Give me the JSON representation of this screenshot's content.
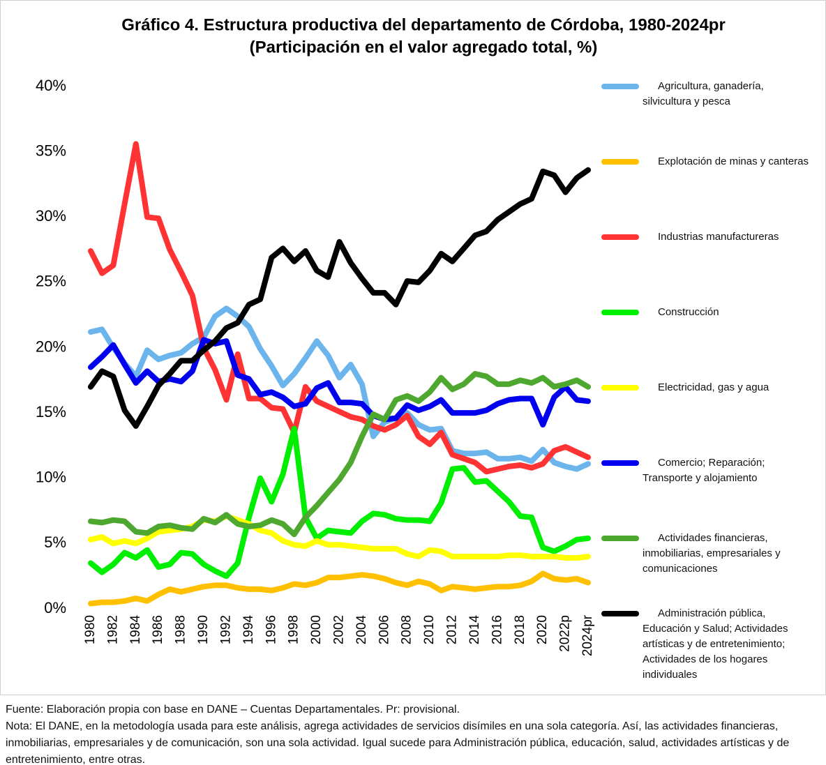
{
  "chart_data": {
    "type": "line",
    "title": "Gráfico 4. Estructura productiva del departamento de Córdoba, 1980-2024pr",
    "subtitle": "(Participación en el valor agregado total, %)",
    "categories": [
      "1980",
      null,
      "1982",
      null,
      "1984",
      null,
      "1986",
      null,
      "1988",
      null,
      "1990",
      null,
      "1992",
      null,
      "1994",
      null,
      "1996",
      null,
      "1998",
      null,
      "2000",
      null,
      "2002",
      null,
      "2004",
      null,
      "2006",
      null,
      "2008",
      null,
      "2010",
      null,
      "2012",
      null,
      "2014",
      null,
      "2016",
      null,
      "2018",
      null,
      "2020",
      null,
      "2022p",
      null,
      "2024pr"
    ],
    "ylim": [
      0,
      40
    ],
    "yticks": [
      {
        "value": 0,
        "label": "0%"
      },
      {
        "value": 5,
        "label": "5%"
      },
      {
        "value": 10,
        "label": "10%"
      },
      {
        "value": 15,
        "label": "15%"
      },
      {
        "value": 20,
        "label": "20%"
      },
      {
        "value": 25,
        "label": "25%"
      },
      {
        "value": 30,
        "label": "30%"
      },
      {
        "value": 35,
        "label": "35%"
      },
      {
        "value": 40,
        "label": "40%"
      }
    ],
    "grid": false,
    "legend": "right",
    "series": [
      {
        "name": "Agricultura, ganadería, silvicultura y pesca",
        "color": "#6cb4ec",
        "values": [
          21.2,
          21.4,
          20.0,
          18.8,
          17.8,
          19.8,
          19.1,
          19.4,
          19.6,
          20.3,
          20.8,
          22.4,
          23.0,
          22.4,
          21.6,
          19.9,
          18.6,
          17.1,
          18.0,
          19.2,
          20.5,
          19.4,
          17.7,
          18.7,
          17.2,
          13.2,
          14.3,
          14.6,
          15.0,
          14.1,
          13.7,
          13.8,
          12.1,
          11.9,
          11.9,
          12.0,
          11.5,
          11.5,
          11.6,
          11.3,
          12.2,
          11.2,
          10.9,
          10.7,
          11.1
        ]
      },
      {
        "name": "Explotación de minas y canteras",
        "color": "#ffc000",
        "values": [
          0.4,
          0.5,
          0.5,
          0.6,
          0.8,
          0.6,
          1.1,
          1.5,
          1.3,
          1.5,
          1.7,
          1.8,
          1.8,
          1.6,
          1.5,
          1.5,
          1.4,
          1.6,
          1.9,
          1.8,
          2.0,
          2.4,
          2.4,
          2.5,
          2.6,
          2.5,
          2.3,
          2.0,
          1.8,
          2.1,
          1.9,
          1.4,
          1.7,
          1.6,
          1.5,
          1.6,
          1.7,
          1.7,
          1.8,
          2.1,
          2.7,
          2.3,
          2.2,
          2.3,
          2.0
        ]
      },
      {
        "name": "Industrias manufactureras",
        "color": "#ff3333",
        "values": [
          27.4,
          25.7,
          26.3,
          31.0,
          35.6,
          30.0,
          29.9,
          27.5,
          25.8,
          24.0,
          20.0,
          18.3,
          16.0,
          19.5,
          16.1,
          16.1,
          15.4,
          15.3,
          13.5,
          17.0,
          15.9,
          15.5,
          15.1,
          14.7,
          14.5,
          14.0,
          13.7,
          14.1,
          14.8,
          13.2,
          12.6,
          13.5,
          11.8,
          11.5,
          11.2,
          10.5,
          10.7,
          10.9,
          11.0,
          10.8,
          11.1,
          12.1,
          12.4,
          12.0,
          11.6
        ]
      },
      {
        "name": "Construcción",
        "color": "#00ee00",
        "values": [
          3.5,
          2.8,
          3.4,
          4.3,
          3.9,
          4.5,
          3.2,
          3.4,
          4.3,
          4.2,
          3.4,
          2.9,
          2.5,
          3.5,
          7.0,
          10.0,
          8.2,
          10.3,
          13.8,
          7.0,
          5.4,
          6.0,
          5.9,
          5.8,
          6.7,
          7.3,
          7.2,
          6.9,
          6.8,
          6.8,
          6.7,
          8.1,
          10.7,
          10.8,
          9.7,
          9.8,
          9.0,
          8.2,
          7.1,
          7.0,
          4.7,
          4.4,
          4.8,
          5.3,
          5.4
        ]
      },
      {
        "name": "Electricidad, gas y agua",
        "color": "#ffff00",
        "values": [
          5.3,
          5.5,
          5.0,
          5.2,
          5.0,
          5.4,
          5.9,
          6.0,
          6.1,
          6.3,
          6.8,
          6.7,
          7.1,
          6.8,
          6.5,
          6.0,
          5.8,
          5.2,
          4.9,
          4.8,
          5.2,
          4.9,
          4.9,
          4.8,
          4.7,
          4.6,
          4.6,
          4.6,
          4.2,
          4.0,
          4.5,
          4.4,
          4.0,
          4.0,
          4.0,
          4.0,
          4.0,
          4.1,
          4.1,
          4.0,
          4.0,
          4.0,
          3.9,
          3.9,
          4.0
        ]
      },
      {
        "name": "Comercio; Reparación; Transporte y alojamiento",
        "color": "#0000ee",
        "values": [
          18.5,
          19.3,
          20.2,
          18.7,
          17.3,
          18.2,
          17.4,
          17.6,
          17.4,
          18.2,
          20.6,
          20.3,
          20.5,
          17.9,
          17.6,
          16.4,
          16.6,
          16.2,
          15.5,
          15.7,
          16.9,
          17.3,
          15.8,
          15.8,
          15.7,
          14.8,
          14.5,
          14.6,
          15.6,
          15.2,
          15.5,
          16.0,
          15.0,
          15.0,
          15.0,
          15.2,
          15.7,
          16.0,
          16.1,
          16.1,
          14.1,
          16.2,
          17.0,
          16.0,
          15.9
        ]
      },
      {
        "name": "Actividades financieras, inmobiliarias, empresariales y comunicaciones",
        "color": "#4ea72e",
        "values": [
          6.7,
          6.6,
          6.8,
          6.7,
          5.9,
          5.8,
          6.3,
          6.4,
          6.2,
          6.1,
          6.9,
          6.6,
          7.2,
          6.5,
          6.3,
          6.4,
          6.8,
          6.5,
          5.7,
          7.0,
          7.9,
          8.9,
          9.9,
          11.2,
          13.2,
          14.9,
          14.5,
          16.0,
          16.3,
          15.9,
          16.6,
          17.7,
          16.8,
          17.2,
          18.0,
          17.8,
          17.2,
          17.2,
          17.5,
          17.3,
          17.7,
          17.0,
          17.2,
          17.5,
          17.0
        ]
      },
      {
        "name": "Administración pública, Educación y Salud; Actividades artísticas y de entretenimiento; Actividades de los hogares individuales",
        "color": "#000000",
        "values": [
          17.0,
          18.2,
          17.8,
          15.2,
          14.0,
          15.5,
          17.1,
          18.0,
          19.0,
          19.0,
          19.8,
          20.5,
          21.5,
          21.9,
          23.3,
          23.7,
          26.9,
          27.6,
          26.6,
          27.4,
          25.9,
          25.4,
          28.1,
          26.5,
          25.3,
          24.2,
          24.2,
          23.3,
          25.1,
          25.0,
          25.9,
          27.2,
          26.6,
          27.6,
          28.6,
          28.9,
          29.8,
          30.4,
          31.0,
          31.4,
          33.5,
          33.2,
          31.9,
          33.0,
          33.6
        ]
      }
    ],
    "source": "Fuente: Elaboración propia con base en DANE – Cuentas Departamentales. Pr: provisional.",
    "note": "Nota: El DANE, en la metodología usada para este análisis, agrega actividades de servicios disímiles en una sola categoría. Así, las actividades financieras, inmobiliarias, empresariales y de comunicación, son una sola actividad. Igual sucede para Administración pública, educación, salud, actividades artísticas y de entretenimiento, entre otras."
  }
}
